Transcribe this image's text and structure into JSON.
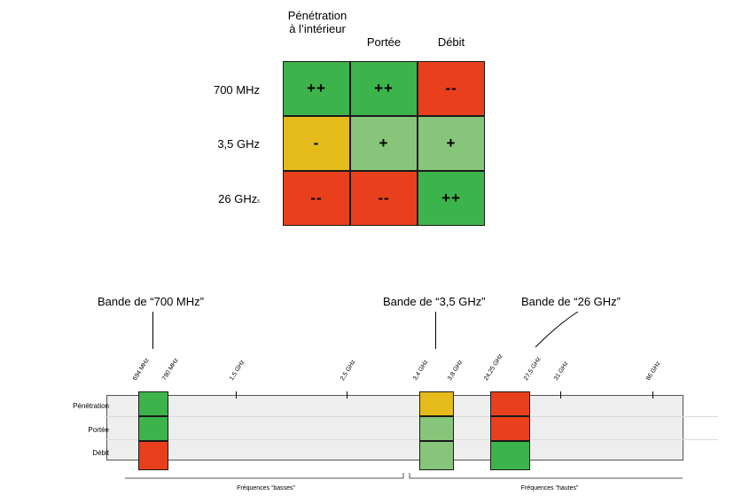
{
  "matrix": {
    "columns": [
      "Pénétration\nà l’intérieur",
      "Portée",
      "Débit"
    ],
    "rows": [
      {
        "label": "700 MHz",
        "sub": "",
        "cells": [
          {
            "text": "++",
            "color": "#3cb44b"
          },
          {
            "text": "++",
            "color": "#3cb44b"
          },
          {
            "text": "--",
            "color": "#e8401c"
          }
        ]
      },
      {
        "label": "3,5 GHz",
        "sub": "",
        "cells": [
          {
            "text": "-",
            "color": "#e4bb1a"
          },
          {
            "text": "+",
            "color": "#86c57a"
          },
          {
            "text": "+",
            "color": "#86c57a"
          }
        ]
      },
      {
        "label": "26 GHz",
        "sub": "5",
        "cells": [
          {
            "text": "--",
            "color": "#e8401c"
          },
          {
            "text": "--",
            "color": "#e8401c"
          },
          {
            "text": "++",
            "color": "#3cb44b"
          }
        ]
      }
    ]
  },
  "bands": {
    "titles": {
      "b700": "Bande de “700 MHz”",
      "b35": "Bande de “3,5 GHz”",
      "b26": "Bande de “26 GHz”"
    },
    "ticks": [
      "694 MHz",
      "790 MHz",
      "1,5 GHz",
      "2,5 GHz",
      "3,4 GHz",
      "3,8 GHz",
      "24,25 GHz",
      "27,5 GHz",
      "31 GHz",
      "86 GHz"
    ],
    "properties": [
      "Pénétration",
      "Portée",
      "Débit"
    ],
    "b700_colors": [
      "#3cb44b",
      "#3cb44b",
      "#e8401c"
    ],
    "b35_colors": [
      "#e4bb1a",
      "#86c57a",
      "#86c57a"
    ],
    "b26_colors": [
      "#e8401c",
      "#e8401c",
      "#3cb44b"
    ],
    "ranges": {
      "low": "Fréquences “basses”",
      "high": "Fréquences “hautes”"
    }
  }
}
